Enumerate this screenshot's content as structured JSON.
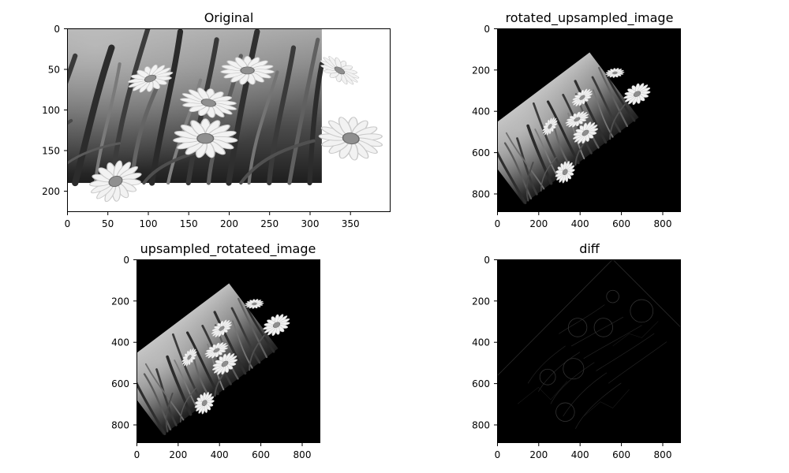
{
  "figure": {
    "panels": [
      {
        "id": "original",
        "title": "Original",
        "x_ticks": [
          0,
          50,
          100,
          150,
          200,
          250,
          300,
          350
        ],
        "y_ticks": [
          0,
          50,
          100,
          150,
          200
        ],
        "x_range": [
          0,
          400
        ],
        "y_range": [
          0,
          227
        ],
        "content": "daisies-photo",
        "colormap": "gray"
      },
      {
        "id": "rotated-upsampled",
        "title": "rotated_upsampled_image",
        "x_ticks": [
          0,
          200,
          400,
          600,
          800
        ],
        "y_ticks": [
          0,
          200,
          400,
          600,
          800
        ],
        "x_range": [
          0,
          890
        ],
        "y_range": [
          0,
          890
        ],
        "content": "daisies-photo-rotated",
        "colormap": "gray"
      },
      {
        "id": "upsampled-rotated",
        "title": "upsampled_rotateed_image",
        "x_ticks": [
          0,
          200,
          400,
          600,
          800
        ],
        "y_ticks": [
          0,
          200,
          400,
          600,
          800
        ],
        "x_range": [
          0,
          890
        ],
        "y_range": [
          0,
          890
        ],
        "content": "daisies-photo-rotated",
        "colormap": "gray"
      },
      {
        "id": "diff",
        "title": "diff",
        "x_ticks": [
          0,
          200,
          400,
          600,
          800
        ],
        "y_ticks": [
          0,
          200,
          400,
          600,
          800
        ],
        "x_range": [
          0,
          890
        ],
        "y_range": [
          0,
          890
        ],
        "content": "difference-map",
        "colormap": "gray"
      }
    ]
  },
  "colors": {
    "background": "#ffffff",
    "axes_ink": "#000000",
    "image_black": "#000000",
    "flower_petal": "#f4f4f4",
    "flower_center": "#8f8f8f",
    "grass_dark": "#2a2a2a",
    "grass_mid": "#5e5e5e",
    "grass_light": "#8a8a8a",
    "sky_haze": "#bdbdbd",
    "diff_edge": "#3a3a3a"
  }
}
